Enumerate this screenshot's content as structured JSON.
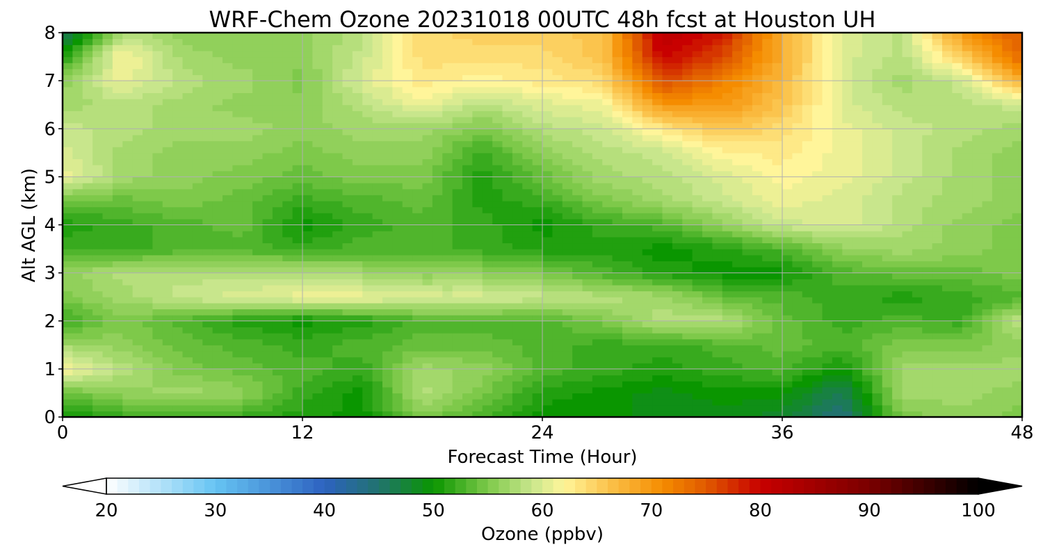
{
  "chart_data": {
    "type": "heatmap",
    "title": "WRF-Chem Ozone  20231018 00UTC 48h fcst at Houston UH",
    "xlabel": "Forecast Time (Hour)",
    "ylabel": "Alt AGL (km)",
    "xlim": [
      0,
      48
    ],
    "ylim": [
      0,
      8
    ],
    "xticks": [
      0,
      12,
      24,
      36,
      48
    ],
    "yticks": [
      0,
      1,
      2,
      3,
      4,
      5,
      6,
      7,
      8
    ],
    "grid": true,
    "x": [
      0,
      3,
      6,
      9,
      12,
      15,
      18,
      21,
      24,
      27,
      30,
      33,
      36,
      39,
      42,
      45,
      48
    ],
    "y": [
      0,
      0.5,
      1,
      1.5,
      2,
      2.5,
      3,
      3.5,
      4,
      4.5,
      5,
      5.5,
      6,
      6.5,
      7,
      7.5,
      8
    ],
    "z": [
      [
        50,
        52,
        53,
        52,
        51,
        50,
        55,
        53,
        50,
        50,
        49,
        49,
        48,
        44,
        55,
        56,
        55
      ],
      [
        54,
        56,
        57,
        56,
        52,
        50,
        58,
        55,
        51,
        50,
        49,
        50,
        50,
        46,
        57,
        57,
        56
      ],
      [
        62,
        58,
        55,
        54,
        53,
        52,
        57,
        56,
        53,
        52,
        51,
        52,
        53,
        50,
        57,
        57,
        57
      ],
      [
        57,
        56,
        54,
        53,
        52,
        53,
        54,
        54,
        53,
        52,
        52,
        53,
        54,
        53,
        55,
        55,
        56
      ],
      [
        52,
        55,
        53,
        51,
        50,
        51,
        53,
        53,
        53,
        55,
        58,
        58,
        54,
        52,
        53,
        52,
        59
      ],
      [
        55,
        57,
        59,
        60,
        61,
        61,
        60,
        60,
        59,
        58,
        57,
        54,
        53,
        52,
        51,
        52,
        53
      ],
      [
        56,
        58,
        58,
        58,
        58,
        57,
        56,
        56,
        55,
        53,
        51,
        50,
        50,
        53,
        54,
        54,
        55
      ],
      [
        52,
        52,
        53,
        53,
        52,
        53,
        53,
        52,
        51,
        51,
        50,
        51,
        53,
        56,
        57,
        56,
        55
      ],
      [
        51,
        52,
        53,
        54,
        50,
        52,
        53,
        52,
        50,
        52,
        53,
        56,
        59,
        60,
        58,
        56,
        55
      ],
      [
        54,
        54,
        55,
        54,
        52,
        53,
        54,
        51,
        52,
        55,
        57,
        59,
        61,
        60,
        58,
        57,
        56
      ],
      [
        61,
        57,
        56,
        55,
        54,
        55,
        55,
        51,
        54,
        57,
        58,
        60,
        62,
        61,
        59,
        57,
        56
      ],
      [
        60,
        57,
        56,
        56,
        55,
        56,
        56,
        52,
        56,
        58,
        59,
        62,
        63,
        61,
        59,
        57,
        56
      ],
      [
        59,
        58,
        57,
        57,
        56,
        57,
        57,
        55,
        58,
        59,
        63,
        66,
        64,
        61,
        59,
        58,
        57
      ],
      [
        57,
        58,
        57,
        56,
        56,
        58,
        61,
        58,
        60,
        61,
        70,
        70,
        66,
        60,
        58,
        58,
        59
      ],
      [
        56,
        61,
        58,
        57,
        55,
        60,
        63,
        62,
        63,
        64,
        76,
        72,
        67,
        60,
        57,
        59,
        68
      ],
      [
        51,
        62,
        57,
        56,
        56,
        59,
        64,
        64,
        64,
        66,
        80,
        76,
        68,
        60,
        58,
        65,
        74
      ],
      [
        45,
        58,
        56,
        56,
        56,
        58,
        64,
        65,
        65,
        66,
        82,
        79,
        68,
        60,
        58,
        70,
        75
      ]
    ],
    "colorbar": {
      "label": "Ozone  (ppbv)",
      "min": 20,
      "max": 100,
      "ticks": [
        20,
        30,
        40,
        50,
        60,
        70,
        80,
        90,
        100
      ],
      "extend": "both",
      "stops": [
        {
          "v": 20,
          "c": "#ffffff"
        },
        {
          "v": 30,
          "c": "#66c4f3"
        },
        {
          "v": 40,
          "c": "#2d62c0"
        },
        {
          "v": 45,
          "c": "#21736e"
        },
        {
          "v": 50,
          "c": "#0a9600"
        },
        {
          "v": 55,
          "c": "#7ec94a"
        },
        {
          "v": 59,
          "c": "#c8e68c"
        },
        {
          "v": 62,
          "c": "#fff59a"
        },
        {
          "v": 66,
          "c": "#fbc44d"
        },
        {
          "v": 71,
          "c": "#f58c00"
        },
        {
          "v": 75,
          "c": "#e05a00"
        },
        {
          "v": 80,
          "c": "#c80000"
        },
        {
          "v": 90,
          "c": "#7a0000"
        },
        {
          "v": 100,
          "c": "#000000"
        }
      ]
    }
  }
}
